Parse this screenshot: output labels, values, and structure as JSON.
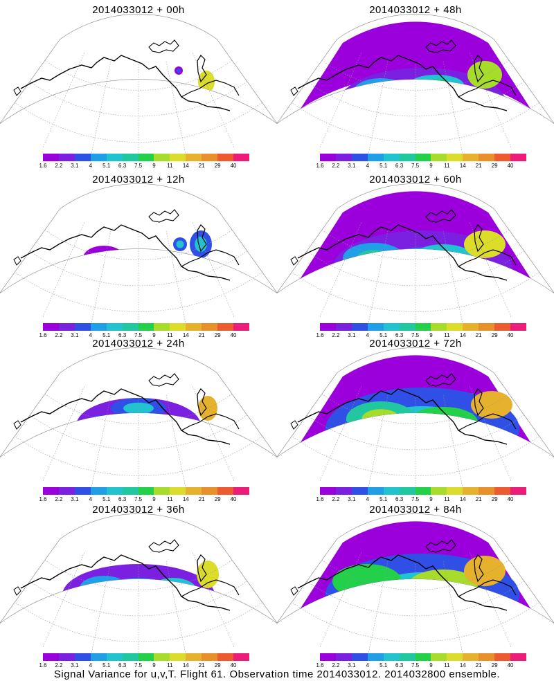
{
  "panels": [
    {
      "title": "2014033012 + 00h",
      "coverage": 0.15
    },
    {
      "title": "2014033012 + 48h",
      "coverage": 0.75
    },
    {
      "title": "2014033012 + 12h",
      "coverage": 0.3
    },
    {
      "title": "2014033012 + 60h",
      "coverage": 0.85
    },
    {
      "title": "2014033012 + 24h",
      "coverage": 0.5
    },
    {
      "title": "2014033012 + 72h",
      "coverage": 0.9
    },
    {
      "title": "2014033012 + 36h",
      "coverage": 0.6
    },
    {
      "title": "2014033012 + 84h",
      "coverage": 0.92
    }
  ],
  "colorbar": {
    "ticks": [
      "1.6",
      "2.2",
      "3.1",
      "4",
      "5.1",
      "6.3",
      "7.5",
      "9",
      "11",
      "14",
      "21",
      "29",
      "40"
    ],
    "colors": [
      "#9b00dc",
      "#7b1fe0",
      "#2f4fe6",
      "#1e9fe8",
      "#21c3d1",
      "#20c8a0",
      "#22d04a",
      "#a8dc2a",
      "#dcdc2a",
      "#e6b12c",
      "#e8902a",
      "#ec5a2e",
      "#ec1c7a"
    ]
  },
  "footer": "Signal Variance for u,v,T. Flight 61. Observation time 2014033012. 2014032800 ensemble."
}
